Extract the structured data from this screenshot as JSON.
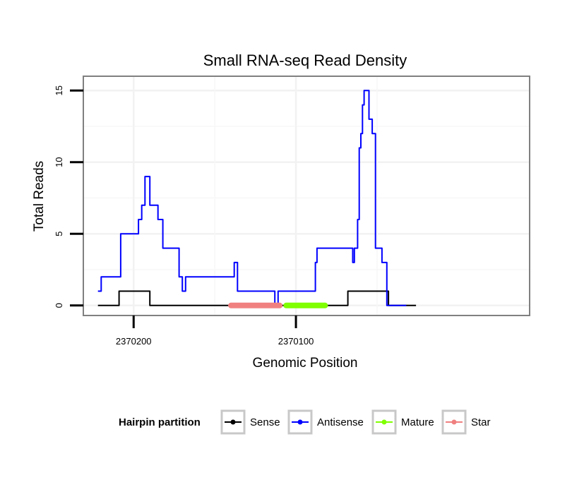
{
  "chart_data": {
    "type": "line",
    "title": "Small RNA-seq Read Density",
    "xlabel": "Genomic Position",
    "ylabel": "Total Reads",
    "x_reversed": true,
    "xlim": [
      2370231,
      2369956
    ],
    "ylim": [
      -0.7,
      16
    ],
    "x_ticks": [
      2370200,
      2370100
    ],
    "x_tick_labels": [
      "2370200",
      "2370100"
    ],
    "y_ticks": [
      0,
      5,
      10,
      15
    ],
    "y_tick_labels": [
      "0",
      "5",
      "10",
      "15"
    ],
    "grid": true,
    "legend_position": "bottom",
    "legend_title": "Hairpin partition",
    "series": [
      {
        "name": "Sense",
        "color": "#000000",
        "width": 2,
        "x": [
          2370222,
          2370209,
          2370209,
          2370190,
          2370190,
          2370092,
          2370092,
          2370068,
          2370068,
          2370043,
          2370043,
          2370026
        ],
        "y": [
          0,
          0,
          1,
          1,
          0,
          0,
          0,
          0,
          1,
          1,
          0,
          0
        ]
      },
      {
        "name": "Antisense",
        "color": "#0000ff",
        "width": 2,
        "x": [
          2370222,
          2370220,
          2370220,
          2370208,
          2370208,
          2370197,
          2370197,
          2370195,
          2370195,
          2370193,
          2370193,
          2370190,
          2370190,
          2370185,
          2370185,
          2370182,
          2370182,
          2370172,
          2370172,
          2370170,
          2370170,
          2370168,
          2370168,
          2370138,
          2370138,
          2370136,
          2370136,
          2370113,
          2370113,
          2370111,
          2370111,
          2370088,
          2370088,
          2370087,
          2370087,
          2370065,
          2370065,
          2370064,
          2370064,
          2370062,
          2370062,
          2370061,
          2370061,
          2370060,
          2370060,
          2370059,
          2370059,
          2370058,
          2370058,
          2370055,
          2370055,
          2370053,
          2370053,
          2370051,
          2370051,
          2370047,
          2370047,
          2370044,
          2370044,
          2370038,
          2370038,
          2370032,
          2370032,
          2370032
        ],
        "y": [
          1,
          1,
          2,
          2,
          5,
          5,
          6,
          6,
          7,
          7,
          9,
          9,
          7,
          7,
          6,
          6,
          4,
          4,
          2,
          2,
          1,
          1,
          2,
          2,
          3,
          3,
          1,
          1,
          0,
          0,
          1,
          1,
          3,
          3,
          4,
          4,
          3,
          3,
          4,
          4,
          6,
          6,
          11,
          11,
          12,
          12,
          14,
          14,
          15,
          15,
          13,
          13,
          12,
          12,
          4,
          4,
          3,
          3,
          0,
          0,
          0,
          0,
          0,
          0
        ]
      },
      {
        "name": "Mature",
        "color": "#7fff00",
        "width": 8,
        "x": [
          2370106,
          2370082
        ],
        "y": [
          0,
          0
        ]
      },
      {
        "name": "Star",
        "color": "#f08080",
        "width": 8,
        "x": [
          2370140,
          2370110
        ],
        "y": [
          0,
          0
        ]
      }
    ]
  }
}
